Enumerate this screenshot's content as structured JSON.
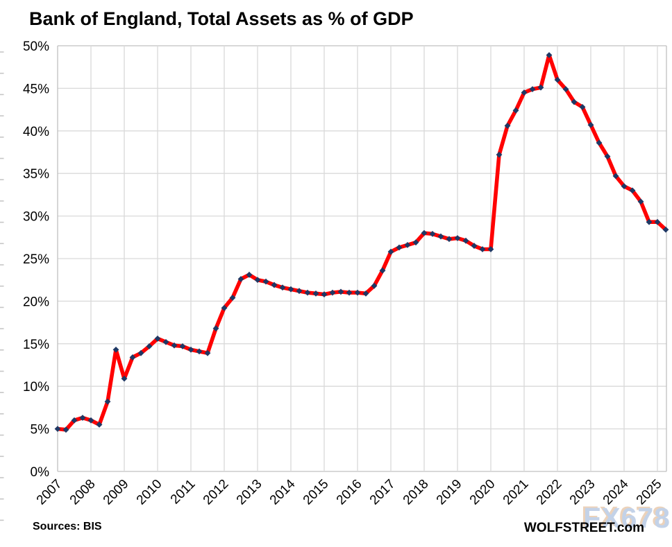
{
  "page": {
    "title": "Bank of England, Total Assets as % of GDP",
    "footer": {
      "sources": "Sources: BIS",
      "brand": "WOLFSTREET.com",
      "watermark": "FX678"
    }
  },
  "style": {
    "line_color": "#ff0000",
    "marker_color": "#1f3864",
    "gridline_color": "#d9d9d9",
    "border_color": "#c0c0c0",
    "tick_color": "#c6c6c6",
    "text_color": "#000000",
    "watermark_fill": "#c3d2e8",
    "watermark_shadow": "#ecd2ba"
  },
  "chart_data": {
    "type": "line",
    "title": "Bank of England, Total Assets as % of GDP",
    "frequency": "quarterly",
    "x_start": "2007 Q1",
    "x_end": "2025 Q2",
    "x_tick_labels": [
      "2007",
      "2008",
      "2009",
      "2010",
      "2011",
      "2012",
      "2013",
      "2014",
      "2015",
      "2016",
      "2017",
      "2018",
      "2019",
      "2020",
      "2021",
      "2022",
      "2023",
      "2024",
      "2025"
    ],
    "y_tick_labels": [
      "0%",
      "5%",
      "10%",
      "15%",
      "20%",
      "25%",
      "30%",
      "35%",
      "40%",
      "45%",
      "50%"
    ],
    "ylim": [
      0,
      50
    ],
    "grid": true,
    "legend": "none",
    "source_note": "Sources: BIS",
    "categories": [
      "2007 Q1",
      "2007 Q2",
      "2007 Q3",
      "2007 Q4",
      "2008 Q1",
      "2008 Q2",
      "2008 Q3",
      "2008 Q4",
      "2009 Q1",
      "2009 Q2",
      "2009 Q3",
      "2009 Q4",
      "2010 Q1",
      "2010 Q2",
      "2010 Q3",
      "2010 Q4",
      "2011 Q1",
      "2011 Q2",
      "2011 Q3",
      "2011 Q4",
      "2012 Q1",
      "2012 Q2",
      "2012 Q3",
      "2012 Q4",
      "2013 Q1",
      "2013 Q2",
      "2013 Q3",
      "2013 Q4",
      "2014 Q1",
      "2014 Q2",
      "2014 Q3",
      "2014 Q4",
      "2015 Q1",
      "2015 Q2",
      "2015 Q3",
      "2015 Q4",
      "2016 Q1",
      "2016 Q2",
      "2016 Q3",
      "2016 Q4",
      "2017 Q1",
      "2017 Q2",
      "2017 Q3",
      "2017 Q4",
      "2018 Q1",
      "2018 Q2",
      "2018 Q3",
      "2018 Q4",
      "2019 Q1",
      "2019 Q2",
      "2019 Q3",
      "2019 Q4",
      "2020 Q1",
      "2020 Q2",
      "2020 Q3",
      "2020 Q4",
      "2021 Q1",
      "2021 Q2",
      "2021 Q3",
      "2021 Q4",
      "2022 Q1",
      "2022 Q2",
      "2022 Q3",
      "2022 Q4",
      "2023 Q1",
      "2023 Q2",
      "2023 Q3",
      "2023 Q4",
      "2024 Q1",
      "2024 Q2",
      "2024 Q3",
      "2024 Q4",
      "2025 Q1",
      "2025 Q2"
    ],
    "series": [
      {
        "name": "Bank of England total assets as % of GDP",
        "color": "#ff0000",
        "marker": "diamond",
        "marker_color": "#1f3864",
        "values": [
          5.0,
          4.9,
          6.0,
          6.3,
          6.0,
          5.5,
          8.2,
          14.3,
          10.9,
          13.4,
          13.9,
          14.7,
          15.6,
          15.2,
          14.8,
          14.7,
          14.3,
          14.1,
          13.9,
          16.8,
          19.2,
          20.4,
          22.6,
          23.1,
          22.5,
          22.3,
          21.9,
          21.6,
          21.4,
          21.2,
          21.0,
          20.9,
          20.8,
          21.0,
          21.1,
          21.0,
          21.0,
          20.9,
          21.8,
          23.6,
          25.8,
          26.3,
          26.6,
          26.9,
          28.0,
          27.9,
          27.6,
          27.3,
          27.4,
          27.1,
          26.5,
          26.1,
          26.1,
          37.2,
          40.6,
          42.4,
          44.5,
          44.9,
          45.1,
          48.9,
          46.0,
          44.9,
          43.4,
          42.8,
          40.7,
          38.6,
          37.0,
          34.7,
          33.5,
          33.0,
          31.7,
          29.3,
          29.3,
          28.4
        ]
      }
    ]
  }
}
